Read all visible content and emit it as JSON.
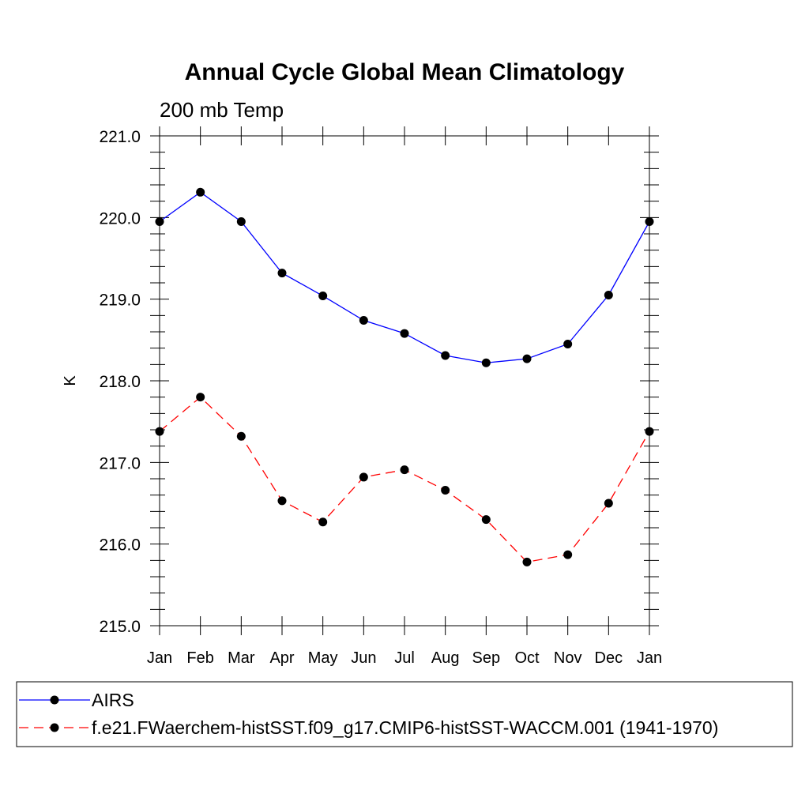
{
  "chart_data": {
    "type": "line",
    "title": "Annual Cycle Global Mean Climatology",
    "subtitle": "200 mb Temp",
    "ylabel": "K",
    "xlabel": "",
    "ylim": [
      215.0,
      221.0
    ],
    "y_ticks": [
      "215.0",
      "216.0",
      "217.0",
      "218.0",
      "219.0",
      "220.0",
      "221.0"
    ],
    "categories": [
      "Jan",
      "Feb",
      "Mar",
      "Apr",
      "May",
      "Jun",
      "Jul",
      "Aug",
      "Sep",
      "Oct",
      "Nov",
      "Dec",
      "Jan"
    ],
    "series": [
      {
        "name": "AIRS",
        "color": "#0000ff",
        "dashed": false,
        "values": [
          219.95,
          220.31,
          219.95,
          219.32,
          219.04,
          218.74,
          218.58,
          218.31,
          218.22,
          218.27,
          218.45,
          219.05,
          219.95
        ]
      },
      {
        "name": "f.e21.FWaerchem-histSST.f09_g17.CMIP6-histSST-WACCM.001 (1941-1970)",
        "color": "#ff0000",
        "dashed": true,
        "values": [
          217.38,
          217.8,
          217.32,
          216.53,
          216.27,
          216.82,
          216.91,
          216.66,
          216.3,
          215.78,
          215.87,
          216.5,
          217.38
        ]
      }
    ],
    "legend_position": "bottom"
  }
}
